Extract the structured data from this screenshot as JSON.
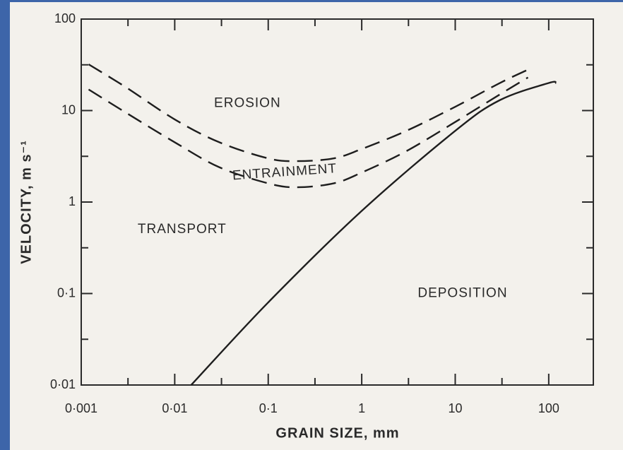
{
  "chart_data": {
    "type": "line",
    "xlabel": "GRAIN SIZE, mm",
    "ylabel": "VELOCITY, m s⁻¹",
    "xscale": "log",
    "yscale": "log",
    "xlim": [
      0.001,
      300
    ],
    "ylim": [
      0.01,
      100
    ],
    "xticks": [
      {
        "value": 0.001,
        "label": "0·001"
      },
      {
        "value": 0.01,
        "label": "0·01"
      },
      {
        "value": 0.1,
        "label": "0·1"
      },
      1,
      10,
      100
    ],
    "yticks": [
      {
        "value": 0.01,
        "label": "0·01"
      },
      {
        "value": 0.1,
        "label": "0·1"
      },
      1,
      10,
      100
    ],
    "annotations": [
      {
        "text": "EROSION",
        "x": 0.06,
        "y": 12
      },
      {
        "text": "ENTRAINMENT",
        "x": 0.15,
        "y": 2.1
      },
      {
        "text": "TRANSPORT",
        "x": 0.012,
        "y": 0.5
      },
      {
        "text": "DEPOSITION",
        "x": 12,
        "y": 0.1
      }
    ],
    "series": [
      {
        "color": "#1e1e1e",
        "style": "dashed",
        "x": [
          0.0012,
          0.003,
          0.01,
          0.03,
          0.1,
          0.2,
          0.5,
          1,
          3,
          10,
          30,
          60
        ],
        "values": [
          32,
          18,
          8,
          4.5,
          3,
          2.8,
          3,
          3.8,
          6,
          11,
          20,
          28
        ]
      },
      {
        "color": "#1e1e1e",
        "style": "dashed",
        "x": [
          0.0012,
          0.003,
          0.01,
          0.03,
          0.1,
          0.2,
          0.5,
          1,
          3,
          10,
          30,
          60
        ],
        "values": [
          17,
          9.5,
          4.5,
          2.4,
          1.6,
          1.45,
          1.6,
          2.1,
          3.6,
          7.5,
          15,
          23
        ]
      },
      {
        "color": "#1e1e1e",
        "style": "solid",
        "x": [
          0.015,
          0.1,
          1,
          10,
          30,
          100,
          120
        ],
        "values": [
          0.01,
          0.08,
          0.8,
          6,
          13,
          20,
          20
        ]
      }
    ]
  }
}
